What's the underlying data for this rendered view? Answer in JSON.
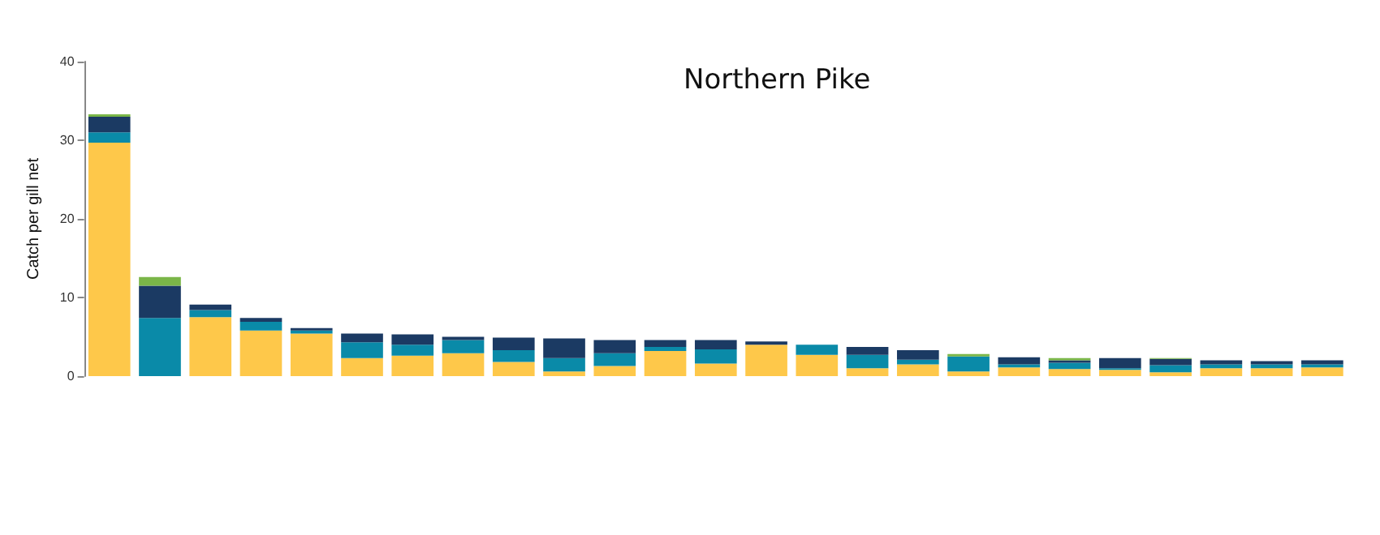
{
  "chart_data": {
    "type": "bar",
    "title": "Northern Pike",
    "ylabel": "Catch per gill net",
    "stacked": true,
    "categories": [
      null,
      null,
      null,
      null,
      null,
      null,
      null,
      null,
      null,
      null,
      null,
      null,
      null,
      null,
      null,
      null,
      null,
      null,
      null,
      null,
      null,
      null,
      null,
      null,
      null
    ],
    "series": [
      {
        "color": "#fec84a",
        "values": [
          29.7,
          null,
          7.5,
          5.8,
          5.4,
          2.3,
          2.6,
          2.9,
          1.8,
          0.6,
          1.3,
          3.2,
          1.6,
          4.0,
          2.7,
          1.0,
          1.5,
          0.6,
          1.1,
          0.9,
          0.8,
          0.5,
          1.0,
          1.0,
          1.1
        ]
      },
      {
        "color": "#0a8aa8",
        "values": [
          1.3,
          7.4,
          0.9,
          1.1,
          0.4,
          2.0,
          1.4,
          1.7,
          1.5,
          1.7,
          1.6,
          0.5,
          1.8,
          null,
          1.3,
          1.7,
          0.6,
          1.9,
          0.4,
          0.8,
          0.2,
          0.9,
          0.5,
          0.5,
          0.4
        ]
      },
      {
        "color": "#1b3a63",
        "values": [
          2.0,
          4.1,
          0.7,
          0.5,
          0.3,
          1.1,
          1.3,
          0.4,
          1.6,
          2.5,
          1.7,
          0.9,
          1.2,
          0.4,
          null,
          1.0,
          1.2,
          null,
          0.9,
          0.3,
          1.3,
          0.8,
          0.5,
          0.4,
          0.5
        ]
      },
      {
        "color": "#7ab648",
        "values": [
          0.3,
          1.1,
          null,
          null,
          null,
          null,
          null,
          null,
          null,
          null,
          null,
          null,
          null,
          null,
          null,
          null,
          null,
          0.3,
          null,
          0.3,
          null,
          0.1,
          null,
          null,
          null
        ]
      }
    ],
    "ylim": [
      0,
      40
    ],
    "yticks": [
      0,
      10,
      20,
      30,
      40
    ],
    "grid": false
  }
}
